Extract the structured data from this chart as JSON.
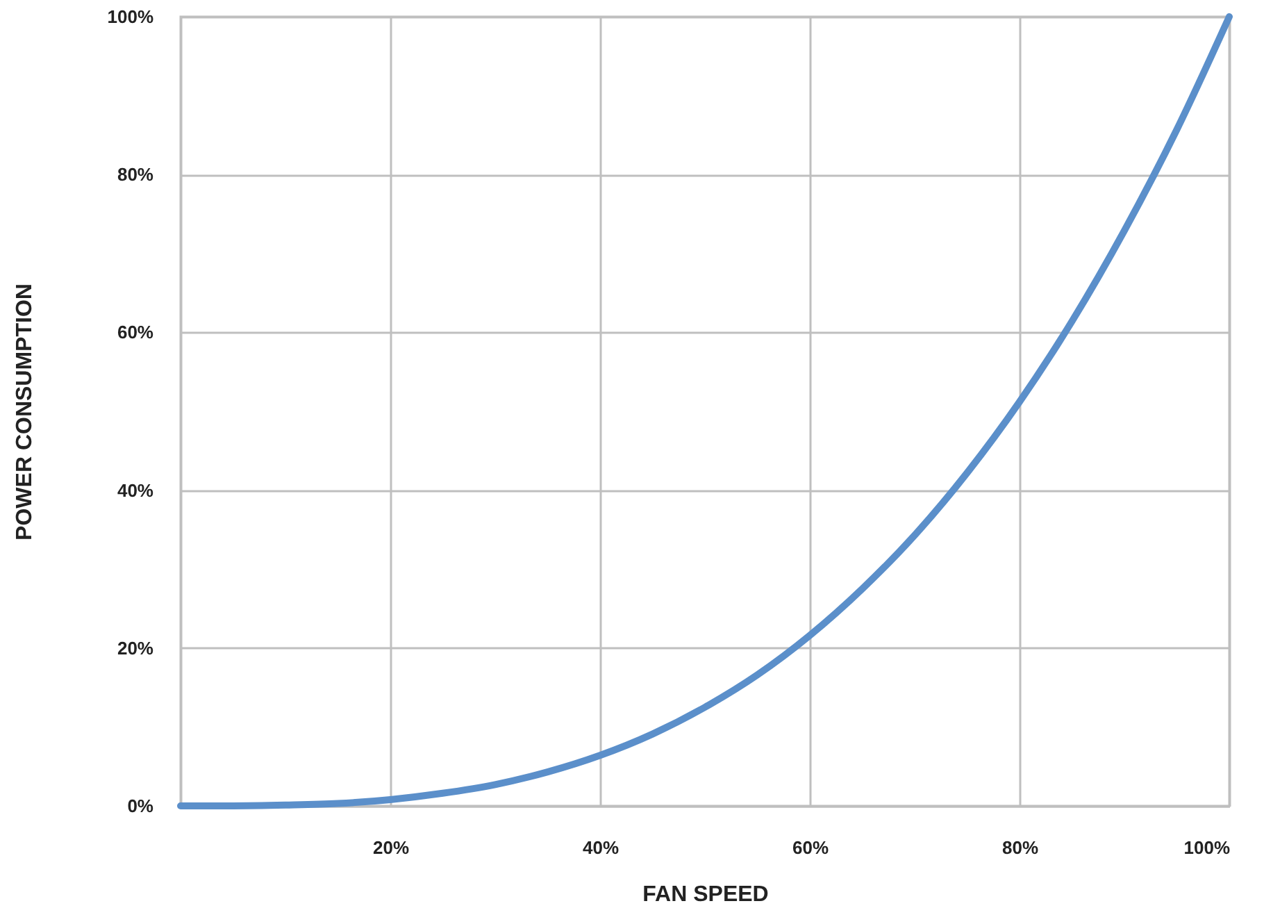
{
  "chart_data": {
    "type": "line",
    "xlabel": "FAN SPEED",
    "ylabel": "POWER CONSUMPTION",
    "x": [
      0,
      5,
      10,
      15,
      20,
      25,
      30,
      35,
      40,
      45,
      50,
      55,
      60,
      65,
      70,
      75,
      80,
      85,
      90,
      95,
      100
    ],
    "series": [
      {
        "color": "#5b8fca",
        "values": [
          0,
          0,
          0.1,
          0.3,
          0.8,
          1.6,
          2.7,
          4.3,
          6.4,
          9.1,
          12.5,
          16.6,
          21.6,
          27.5,
          34.3,
          42.2,
          51.2,
          61.4,
          72.9,
          85.7,
          100
        ]
      }
    ],
    "xlim": [
      0,
      100
    ],
    "xticks": [
      {
        "value": 20,
        "label": "20%"
      },
      {
        "value": 40,
        "label": "40%"
      },
      {
        "value": 60,
        "label": "60%"
      },
      {
        "value": 80,
        "label": "80%"
      },
      {
        "value": 100,
        "label": "100%"
      }
    ],
    "ylim": [
      0,
      100
    ],
    "yticks": [
      {
        "value": 0,
        "label": "0%"
      },
      {
        "value": 20,
        "label": "20%"
      },
      {
        "value": 40,
        "label": "40%"
      },
      {
        "value": 60,
        "label": "60%"
      },
      {
        "value": 80,
        "label": "80%"
      },
      {
        "value": 100,
        "label": "100%"
      }
    ],
    "grid": true,
    "marker": "none",
    "line_style": "solid"
  }
}
